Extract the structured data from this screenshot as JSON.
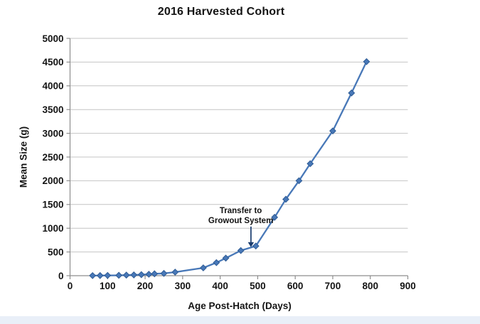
{
  "chart_data": {
    "type": "line",
    "title": "2016 Harvested Cohort",
    "xlabel": "Age Post-Hatch (Days)",
    "ylabel": "Mean Size (g)",
    "xlim": [
      0,
      900
    ],
    "ylim": [
      0,
      5000
    ],
    "x_ticks": [
      0,
      100,
      200,
      300,
      400,
      500,
      600,
      700,
      800,
      900
    ],
    "y_ticks": [
      0,
      500,
      1000,
      1500,
      2000,
      2500,
      3000,
      3500,
      4000,
      4500,
      5000
    ],
    "grid": "horizontal-only",
    "legend": "none",
    "series": [
      {
        "name": "Mean Size",
        "marker": "diamond",
        "points": [
          [
            60,
            2
          ],
          [
            80,
            3
          ],
          [
            100,
            5
          ],
          [
            130,
            8
          ],
          [
            150,
            12
          ],
          [
            170,
            16
          ],
          [
            190,
            22
          ],
          [
            210,
            30
          ],
          [
            225,
            40
          ],
          [
            250,
            48
          ],
          [
            280,
            75
          ],
          [
            355,
            165
          ],
          [
            390,
            275
          ],
          [
            415,
            370
          ],
          [
            455,
            530
          ],
          [
            495,
            625
          ],
          [
            545,
            1230
          ],
          [
            575,
            1610
          ],
          [
            610,
            2000
          ],
          [
            640,
            2360
          ],
          [
            700,
            3050
          ],
          [
            750,
            3850
          ],
          [
            790,
            4510
          ]
        ]
      }
    ],
    "annotation": {
      "line1": "Transfer to",
      "line2": "Growout System",
      "text_day": 455,
      "text_top_g": 1465,
      "arrow_day": 482,
      "arrow_from_g": 1035,
      "arrow_tip_g": 600
    }
  },
  "colors": {
    "series_line": "#4878B8",
    "marker_fill": "#4878B8",
    "marker_stroke": "#2E5B94",
    "gridline": "#C4C4C4",
    "axis": "#8E8E8E",
    "arrow": "#1A3C6E",
    "text": "#141414",
    "bottom_strip": "#E9EFF8"
  }
}
